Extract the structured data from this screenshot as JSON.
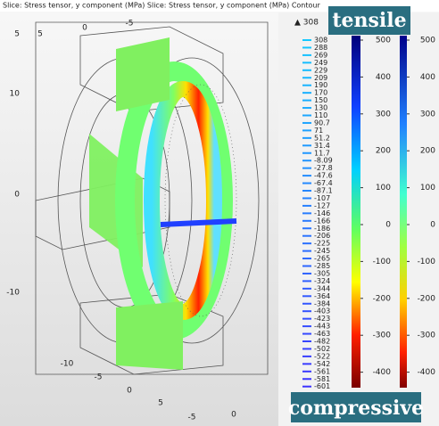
{
  "header": "Slice: Stress tensor, y component (MPa)  Slice: Stress tensor, y component (MPa)  Contour",
  "axes": {
    "top": [
      "5",
      "0",
      "-5"
    ],
    "left": [
      "5",
      "10",
      "0",
      "-10"
    ],
    "bottom": [
      "-10",
      "-5",
      "0",
      "5",
      "-5",
      "0"
    ]
  },
  "legend": {
    "max": "▲ 308",
    "levels": [
      308,
      288,
      269,
      249,
      229,
      209,
      190,
      170,
      150,
      130,
      110,
      90.7,
      71,
      51.2,
      31.4,
      11.7,
      -8.09,
      -27.8,
      -47.6,
      -67.4,
      -87.1,
      -107,
      -127,
      -146,
      -166,
      -186,
      -206,
      -225,
      -245,
      -265,
      -285,
      -305,
      -324,
      -344,
      -364,
      -384,
      -403,
      -423,
      -443,
      -463,
      -482,
      -502,
      -522,
      -542,
      -561,
      -581,
      -601
    ]
  },
  "colorbars": [
    {
      "ticks": [
        500,
        400,
        300,
        200,
        100,
        0,
        -100,
        -200,
        -300,
        -400
      ]
    },
    {
      "ticks": [
        500,
        400,
        300,
        200,
        100,
        0,
        -100,
        -200,
        -300,
        -400
      ]
    }
  ],
  "annotations": {
    "tensile": "tensile",
    "compressive": "compressive"
  }
}
